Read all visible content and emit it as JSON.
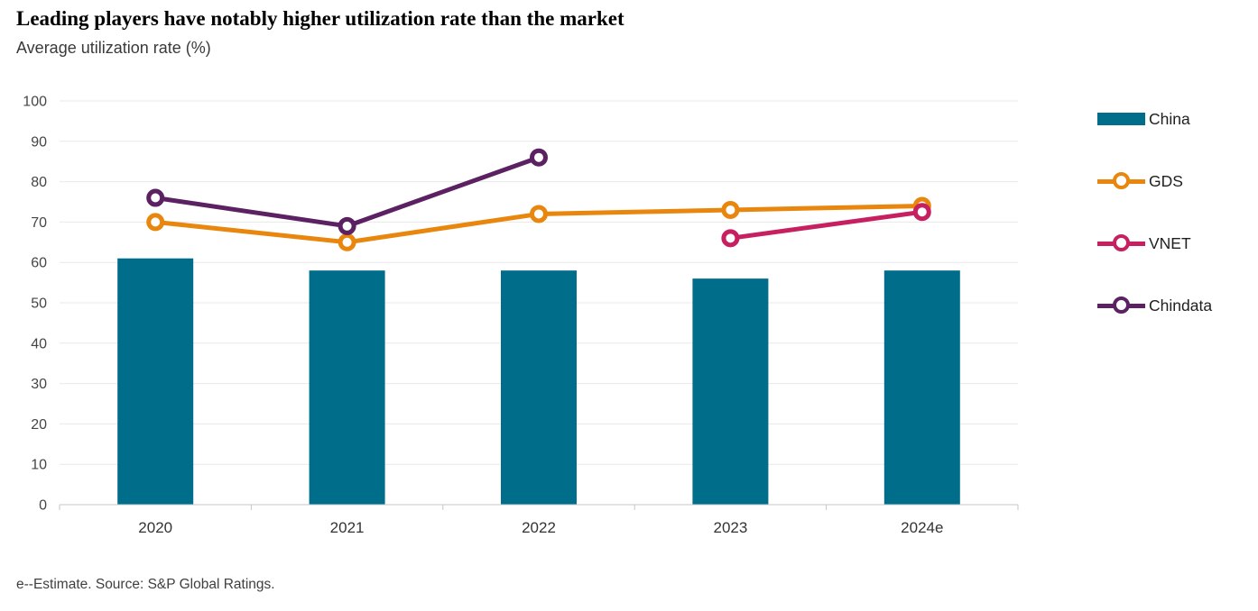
{
  "header": {
    "title": "Leading players have notably higher utilization rate than the market",
    "subtitle": "Average utilization rate (%)"
  },
  "footer": {
    "note": "e--Estimate. Source: S&P Global Ratings."
  },
  "chart_data": {
    "type": "bar",
    "subtype": "bar-and-line-combo",
    "title": "Leading players have notably higher utilization rate than the market",
    "ylabel": "Average utilization rate (%)",
    "xlabel": "",
    "categories": [
      "2020",
      "2021",
      "2022",
      "2023",
      "2024e"
    ],
    "series": [
      {
        "name": "China",
        "type": "bar",
        "color": "#006d8a",
        "values": [
          61,
          58,
          58,
          56,
          58
        ]
      },
      {
        "name": "GDS",
        "type": "line",
        "color": "#e8860d",
        "values": [
          70,
          65,
          72,
          73,
          74
        ]
      },
      {
        "name": "VNET",
        "type": "line",
        "color": "#c62061",
        "values": [
          null,
          null,
          null,
          66,
          72.5
        ]
      },
      {
        "name": "Chindata",
        "type": "line",
        "color": "#5b2162",
        "values": [
          76,
          69,
          86,
          null,
          null
        ]
      }
    ],
    "ylim": [
      0,
      100
    ],
    "ytick_step": 10,
    "grid": true,
    "grid_color": "#e8e8e8",
    "axis_color": "#c6c6c6",
    "legend_position": "right"
  }
}
